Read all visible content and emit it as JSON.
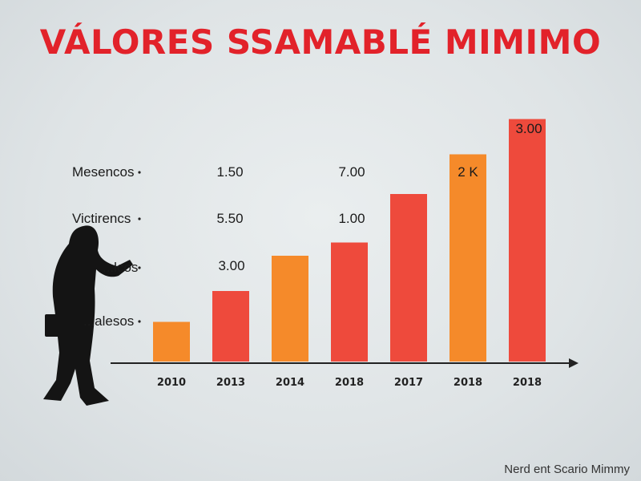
{
  "title": "VÁLORES SSAMABLÉ MIMIMO",
  "footer": "Nerd ent Scario Mimmy",
  "colors": {
    "orange": "#f58a2a",
    "red": "#ee4a3c",
    "title": "#e2222a"
  },
  "chart_data": {
    "type": "bar",
    "categories": [
      "2010",
      "2013",
      "2014",
      "2018",
      "2017",
      "2018",
      "2018"
    ],
    "values": [
      0.9,
      1.6,
      2.4,
      2.7,
      3.8,
      4.7,
      5.5
    ],
    "colors": [
      "#f58a2a",
      "#ee4a3c",
      "#f58a2a",
      "#ee4a3c",
      "#ee4a3c",
      "#f58a2a",
      "#ee4a3c"
    ],
    "ylim": [
      0,
      6
    ],
    "row_labels": [
      "Mesencos",
      "Victirencs",
      "...lcos",
      "...alesos"
    ],
    "annotations": [
      "1.50",
      "7.00",
      "2 K",
      "5.50",
      "1.00",
      "3.00",
      "3.00"
    ],
    "xlabel": "",
    "ylabel": ""
  }
}
